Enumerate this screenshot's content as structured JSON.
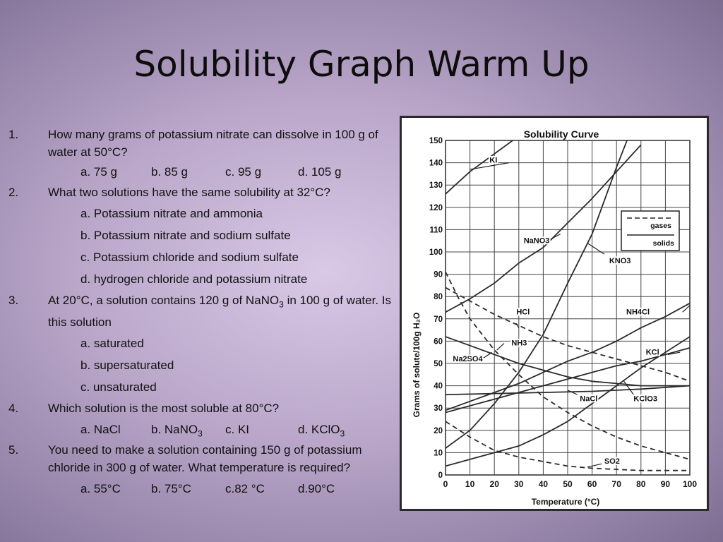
{
  "slide": {
    "title": "Solubility Graph Warm Up"
  },
  "questions": [
    {
      "num": "1.",
      "text": "How many grams of potassium nitrate can dissolve in 100 g of water at 50°C?",
      "options": [
        "a. 75 g",
        "b. 85 g",
        "c. 95 g",
        "d. 105 g"
      ]
    },
    {
      "num": "2.",
      "text": "What two solutions have the same solubility at 32°C?",
      "options": [
        "a. Potassium nitrate and ammonia",
        "b. Potassium nitrate and sodium sulfate",
        "c. Potassium chloride and sodium sulfate",
        "d. hydrogen chloride and potassium nitrate"
      ]
    },
    {
      "num": "3.",
      "text_a": "At 20°C, a solution contains 120 g of NaNO",
      "text_sub": "3",
      "text_b": " in 100 g of water.  Is this solution",
      "options": [
        "a. saturated",
        "b. supersaturated",
        "c. unsaturated"
      ]
    },
    {
      "num": "4.",
      "text": "Which solution is the most soluble at 80°C?",
      "opt_a": "a. NaCl",
      "opt_b": "b. NaNO",
      "opt_b_sub": "3",
      "opt_c": "c. KI",
      "opt_d": "d. KClO",
      "opt_d_sub": "3"
    },
    {
      "num": "5.",
      "text": "You need to make a solution containing 150 g of potassium chloride in 300 g of water.  What temperature is required?",
      "options": [
        "a. 55°C",
        "b. 75°C",
        "c.82 °C",
        "d.90°C"
      ]
    }
  ],
  "chart_data": {
    "type": "line",
    "title": "Solubility Curve",
    "xlabel": "Temperature (°C)",
    "ylabel": "Grams of solute/100g H₂O",
    "xlim": [
      0,
      100
    ],
    "ylim": [
      0,
      150
    ],
    "x_ticks": [
      0,
      10,
      20,
      30,
      40,
      50,
      60,
      70,
      80,
      90,
      100
    ],
    "y_ticks": [
      0,
      10,
      20,
      30,
      40,
      50,
      60,
      70,
      80,
      90,
      100,
      110,
      120,
      130,
      140,
      150
    ],
    "grid": true,
    "legend": {
      "position": "top-right",
      "entries": [
        {
          "label": "gases",
          "style": "dashed"
        },
        {
          "label": "solids",
          "style": "solid"
        }
      ]
    },
    "series": [
      {
        "name": "KI",
        "style": "solid",
        "points": [
          [
            0,
            126
          ],
          [
            10,
            136
          ],
          [
            20,
            144
          ],
          [
            30,
            152
          ]
        ]
      },
      {
        "name": "NaNO3",
        "style": "solid",
        "points": [
          [
            0,
            73
          ],
          [
            10,
            79
          ],
          [
            20,
            86
          ],
          [
            30,
            95
          ],
          [
            40,
            102
          ],
          [
            50,
            113
          ],
          [
            60,
            124
          ],
          [
            70,
            136
          ],
          [
            80,
            148
          ]
        ]
      },
      {
        "name": "KNO3",
        "style": "solid",
        "points": [
          [
            0,
            12
          ],
          [
            10,
            20
          ],
          [
            20,
            32
          ],
          [
            30,
            46
          ],
          [
            40,
            63
          ],
          [
            50,
            86
          ],
          [
            60,
            108
          ],
          [
            70,
            138
          ],
          [
            75,
            152
          ]
        ]
      },
      {
        "name": "HCl",
        "style": "dashed",
        "points": [
          [
            0,
            84
          ],
          [
            10,
            78
          ],
          [
            20,
            72
          ],
          [
            30,
            67
          ],
          [
            40,
            62
          ],
          [
            50,
            58
          ],
          [
            60,
            55
          ],
          [
            70,
            52
          ],
          [
            80,
            49
          ],
          [
            90,
            46
          ],
          [
            100,
            42
          ]
        ]
      },
      {
        "name": "NH3",
        "style": "dashed",
        "points": [
          [
            0,
            91
          ],
          [
            5,
            80
          ],
          [
            10,
            70
          ],
          [
            20,
            56
          ],
          [
            30,
            45
          ],
          [
            40,
            35
          ],
          [
            50,
            28
          ],
          [
            60,
            22
          ],
          [
            70,
            17
          ],
          [
            80,
            13
          ],
          [
            90,
            10
          ],
          [
            100,
            7
          ]
        ]
      },
      {
        "name": "Na2SO4",
        "style": "solid",
        "points": [
          [
            0,
            62
          ],
          [
            10,
            58
          ],
          [
            20,
            54
          ],
          [
            30,
            50
          ],
          [
            40,
            47
          ],
          [
            50,
            44
          ],
          [
            60,
            42
          ],
          [
            70,
            41
          ],
          [
            80,
            40
          ],
          [
            90,
            40
          ],
          [
            100,
            40
          ]
        ]
      },
      {
        "name": "NH4Cl",
        "style": "solid",
        "points": [
          [
            0,
            29
          ],
          [
            10,
            33
          ],
          [
            20,
            37
          ],
          [
            30,
            41
          ],
          [
            40,
            46
          ],
          [
            50,
            51
          ],
          [
            60,
            55
          ],
          [
            70,
            60
          ],
          [
            80,
            66
          ],
          [
            90,
            71
          ],
          [
            100,
            77
          ]
        ]
      },
      {
        "name": "KCl",
        "style": "solid",
        "points": [
          [
            0,
            28
          ],
          [
            10,
            31
          ],
          [
            20,
            34
          ],
          [
            30,
            37
          ],
          [
            40,
            40
          ],
          [
            50,
            43
          ],
          [
            60,
            46
          ],
          [
            70,
            49
          ],
          [
            80,
            51
          ],
          [
            90,
            54
          ],
          [
            100,
            57
          ]
        ]
      },
      {
        "name": "NaCl",
        "style": "solid",
        "points": [
          [
            0,
            36
          ],
          [
            20,
            36.5
          ],
          [
            40,
            37
          ],
          [
            60,
            37.5
          ],
          [
            80,
            38.5
          ],
          [
            100,
            40
          ]
        ]
      },
      {
        "name": "KClO3",
        "style": "solid",
        "points": [
          [
            0,
            4
          ],
          [
            10,
            7
          ],
          [
            20,
            10
          ],
          [
            30,
            13
          ],
          [
            40,
            18
          ],
          [
            50,
            24
          ],
          [
            60,
            32
          ],
          [
            70,
            40
          ],
          [
            80,
            48
          ],
          [
            90,
            55
          ],
          [
            100,
            62
          ]
        ]
      },
      {
        "name": "SO2",
        "style": "dashed",
        "points": [
          [
            0,
            24
          ],
          [
            10,
            17
          ],
          [
            20,
            11
          ],
          [
            30,
            8
          ],
          [
            40,
            6
          ],
          [
            50,
            4
          ],
          [
            60,
            3
          ],
          [
            80,
            2
          ],
          [
            100,
            2
          ]
        ]
      }
    ]
  }
}
